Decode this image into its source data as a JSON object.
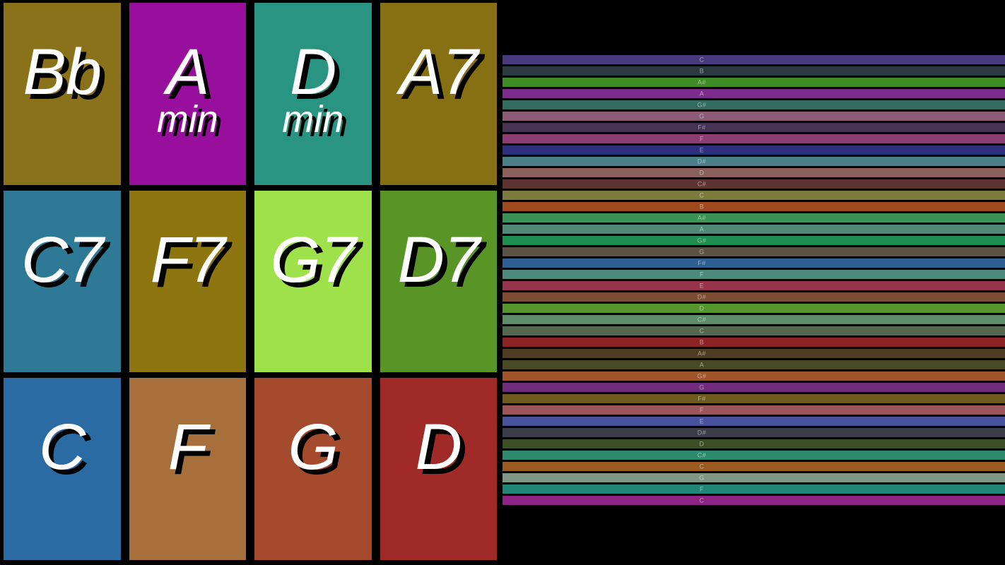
{
  "app": {
    "background_color": "#000000",
    "pad_text_color": "#ffffff",
    "pad_shadow_color": "#000000",
    "roll_label_color": "rgba(255,255,255,0.5)"
  },
  "chord_pads": {
    "rows": 3,
    "cols": 4,
    "cells": [
      {
        "label": "Bb",
        "sub": "",
        "color": "#8a721a"
      },
      {
        "label": "A",
        "sub": "min",
        "color": "#970f9c"
      },
      {
        "label": "D",
        "sub": "min",
        "color": "#2a9483"
      },
      {
        "label": "A7",
        "sub": "",
        "color": "#877013"
      },
      {
        "label": "C7",
        "sub": "",
        "color": "#2e7996"
      },
      {
        "label": "F7",
        "sub": "",
        "color": "#8d750f"
      },
      {
        "label": "G7",
        "sub": "",
        "color": "#9fe14b"
      },
      {
        "label": "D7",
        "sub": "",
        "color": "#599427"
      },
      {
        "label": "C",
        "sub": "",
        "color": "#2a6ba3"
      },
      {
        "label": "F",
        "sub": "",
        "color": "#a66f3b"
      },
      {
        "label": "G",
        "sub": "",
        "color": "#a54b2d"
      },
      {
        "label": "D",
        "sub": "",
        "color": "#9f2a27"
      }
    ]
  },
  "note_roll": {
    "stripes": [
      {
        "note": "C",
        "color": "#463a7d"
      },
      {
        "note": "B",
        "color": "#2b3a42"
      },
      {
        "note": "A#",
        "color": "#3f8c26"
      },
      {
        "note": "A",
        "color": "#7c2d8c"
      },
      {
        "note": "G#",
        "color": "#336b5e"
      },
      {
        "note": "G",
        "color": "#8c5a74"
      },
      {
        "note": "F#",
        "color": "#453254"
      },
      {
        "note": "F",
        "color": "#8c3d74"
      },
      {
        "note": "E",
        "color": "#2f2f80"
      },
      {
        "note": "D#",
        "color": "#4c7f88"
      },
      {
        "note": "D",
        "color": "#8a5f5c"
      },
      {
        "note": "C#",
        "color": "#5e3430"
      },
      {
        "note": "C",
        "color": "#7c7b3e"
      },
      {
        "note": "B",
        "color": "#9e4a1e"
      },
      {
        "note": "A#",
        "color": "#3b9257"
      },
      {
        "note": "A",
        "color": "#4f8874"
      },
      {
        "note": "G#",
        "color": "#1f8c50"
      },
      {
        "note": "G",
        "color": "#5c5244"
      },
      {
        "note": "F#",
        "color": "#2e5f92"
      },
      {
        "note": "F",
        "color": "#4e8a7a"
      },
      {
        "note": "E",
        "color": "#97334a"
      },
      {
        "note": "D#",
        "color": "#7c4c34"
      },
      {
        "note": "D",
        "color": "#55962f"
      },
      {
        "note": "C#",
        "color": "#5e8c68"
      },
      {
        "note": "C",
        "color": "#54684f"
      },
      {
        "note": "B",
        "color": "#8c2426"
      },
      {
        "note": "A#",
        "color": "#4e3d22"
      },
      {
        "note": "A",
        "color": "#494a25"
      },
      {
        "note": "G#",
        "color": "#a0542a"
      },
      {
        "note": "G",
        "color": "#702c7c"
      },
      {
        "note": "F#",
        "color": "#6e5a1c"
      },
      {
        "note": "F",
        "color": "#9a5658"
      },
      {
        "note": "E",
        "color": "#47519c"
      },
      {
        "note": "D#",
        "color": "#3c3c4a"
      },
      {
        "note": "D",
        "color": "#3c4f24"
      },
      {
        "note": "C#",
        "color": "#2e8a6c"
      },
      {
        "note": "C",
        "color": "#9a5a20"
      },
      {
        "note": "G",
        "color": "#7f9886"
      },
      {
        "note": "F",
        "color": "#218576"
      },
      {
        "note": "C",
        "color": "#8e2386"
      }
    ]
  }
}
